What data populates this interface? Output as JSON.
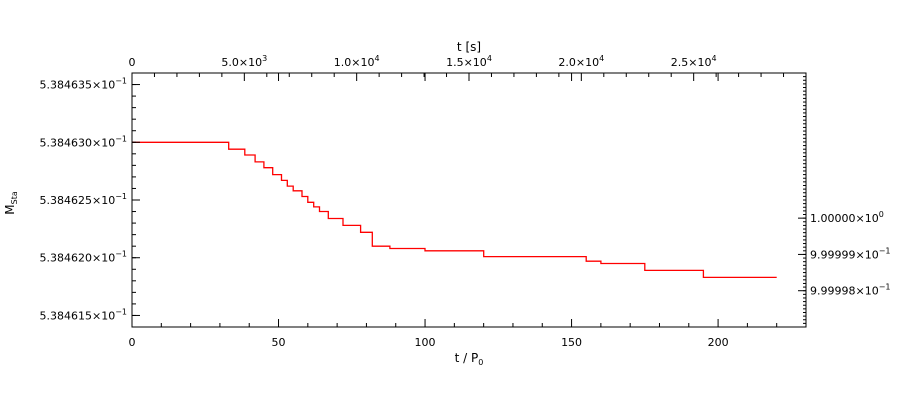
{
  "chart_data": {
    "type": "line",
    "title": "",
    "xlabel": "t / P",
    "xlabel_sub": "0",
    "ylabel": "M",
    "ylabel_sub": "Sta",
    "top_xlabel": "t [s]",
    "xlim": [
      0,
      230
    ],
    "ylim": [
      0.5384614,
      0.5384636
    ],
    "top_xlim": [
      0,
      30000
    ],
    "right_ylim": [
      0.999997,
      1.000004
    ],
    "grid": false,
    "series_color": "#ff0000",
    "x_ticks": [
      0,
      50,
      100,
      150,
      200
    ],
    "x_tick_labels": [
      "0",
      "50",
      "100",
      "150",
      "200"
    ],
    "y_ticks": [
      0.5384615,
      0.538462,
      0.5384625,
      0.538463,
      0.5384635
    ],
    "y_tick_labels": [
      {
        "base": "5.384615×10",
        "exp": "−1"
      },
      {
        "base": "5.384620×10",
        "exp": "−1"
      },
      {
        "base": "5.384625×10",
        "exp": "−1"
      },
      {
        "base": "5.384630×10",
        "exp": "−1"
      },
      {
        "base": "5.384635×10",
        "exp": "−1"
      }
    ],
    "top_ticks": [
      0,
      5000,
      10000,
      15000,
      20000,
      25000
    ],
    "top_tick_labels": [
      {
        "base": "0",
        "exp": ""
      },
      {
        "base": "5.0×10",
        "exp": "3"
      },
      {
        "base": "1.0×10",
        "exp": "4"
      },
      {
        "base": "1.5×10",
        "exp": "4"
      },
      {
        "base": "2.0×10",
        "exp": "4"
      },
      {
        "base": "2.5×10",
        "exp": "4"
      }
    ],
    "right_ticks": [
      1.0,
      0.999999,
      0.999998
    ],
    "right_tick_labels": [
      {
        "base": "1.00000×10",
        "exp": "0"
      },
      {
        "base": "9.99999×10",
        "exp": "−1"
      },
      {
        "base": "9.99998×10",
        "exp": "−1"
      }
    ],
    "series": [
      {
        "x": [
          0,
          33,
          33,
          38.5,
          38.5,
          42,
          42,
          45,
          45,
          48,
          48,
          51,
          51,
          53,
          53,
          55,
          55,
          58,
          58,
          60,
          60,
          62,
          62,
          64,
          64,
          67,
          67,
          72,
          72,
          78,
          78,
          82,
          82,
          88,
          88,
          100,
          100,
          120,
          120,
          155,
          155,
          160,
          160,
          175,
          175,
          195,
          195,
          220
        ],
        "y": [
          0.538463,
          0.538463,
          0.53846294,
          0.53846294,
          0.53846289,
          0.53846289,
          0.53846283,
          0.53846283,
          0.53846278,
          0.53846278,
          0.53846272,
          0.53846272,
          0.53846267,
          0.53846267,
          0.53846262,
          0.53846262,
          0.53846258,
          0.53846258,
          0.53846253,
          0.53846253,
          0.53846248,
          0.53846248,
          0.53846244,
          0.53846244,
          0.5384624,
          0.5384624,
          0.53846234,
          0.53846234,
          0.53846228,
          0.53846228,
          0.53846222,
          0.53846222,
          0.5384621,
          0.5384621,
          0.53846208,
          0.53846208,
          0.53846206,
          0.53846206,
          0.53846201,
          0.53846201,
          0.53846197,
          0.53846197,
          0.53846195,
          0.53846195,
          0.53846189,
          0.53846189,
          0.53846183,
          0.53846183
        ]
      }
    ]
  }
}
